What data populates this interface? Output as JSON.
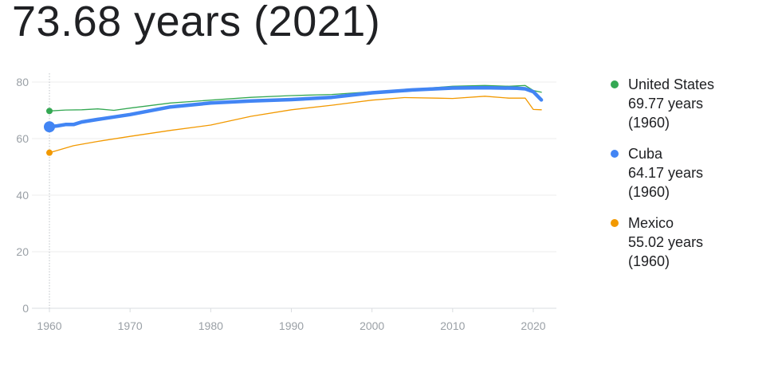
{
  "headline": "73.68 years (2021)",
  "colors": {
    "us": "#34a853",
    "cuba": "#4285f4",
    "mexico": "#f29900",
    "grid": "#ececec",
    "tick": "#9aa0a6"
  },
  "legend": [
    {
      "name": "United States",
      "value": "69.77 years",
      "year": "(1960)",
      "color": "#34a853"
    },
    {
      "name": "Cuba",
      "value": "64.17 years",
      "year": "(1960)",
      "color": "#4285f4"
    },
    {
      "name": "Mexico",
      "value": "55.02 years",
      "year": "(1960)",
      "color": "#f29900"
    }
  ],
  "chart_data": {
    "type": "line",
    "title": "73.68 years (2021)",
    "xlabel": "",
    "ylabel": "",
    "xlim": [
      1960,
      2021
    ],
    "ylim": [
      0,
      80
    ],
    "xticks": [
      1960,
      1970,
      1980,
      1990,
      2000,
      2010,
      2020
    ],
    "yticks": [
      0,
      20,
      40,
      60,
      80
    ],
    "hover_year": 1960,
    "series": [
      {
        "name": "United States",
        "x": [
          1960,
          1962,
          1964,
          1966,
          1968,
          1970,
          1975,
          1980,
          1985,
          1990,
          1995,
          2000,
          2005,
          2010,
          2014,
          2017,
          2019,
          2020,
          2021
        ],
        "y": [
          69.77,
          70.1,
          70.2,
          70.5,
          70.0,
          70.8,
          72.6,
          73.6,
          74.6,
          75.2,
          75.6,
          76.6,
          77.4,
          78.5,
          78.8,
          78.5,
          78.8,
          77.0,
          76.4
        ]
      },
      {
        "name": "Cuba",
        "x": [
          1960,
          1961,
          1962,
          1963,
          1964,
          1966,
          1970,
          1975,
          1980,
          1985,
          1990,
          1995,
          2000,
          2005,
          2010,
          2014,
          2018,
          2019,
          2020,
          2021
        ],
        "y": [
          64.17,
          64.5,
          65.0,
          65.0,
          65.9,
          66.8,
          68.5,
          71.2,
          72.6,
          73.3,
          73.8,
          74.6,
          76.2,
          77.2,
          77.9,
          78.0,
          77.8,
          77.6,
          76.6,
          73.68
        ]
      },
      {
        "name": "Mexico",
        "x": [
          1960,
          1963,
          1966,
          1970,
          1975,
          1980,
          1985,
          1990,
          1995,
          2000,
          2004,
          2008,
          2010,
          2014,
          2017,
          2019,
          2020,
          2021
        ],
        "y": [
          55.02,
          57.5,
          59.0,
          60.8,
          62.9,
          64.8,
          67.9,
          70.2,
          71.8,
          73.6,
          74.5,
          74.3,
          74.2,
          75.0,
          74.3,
          74.3,
          70.3,
          70.2
        ]
      }
    ]
  }
}
